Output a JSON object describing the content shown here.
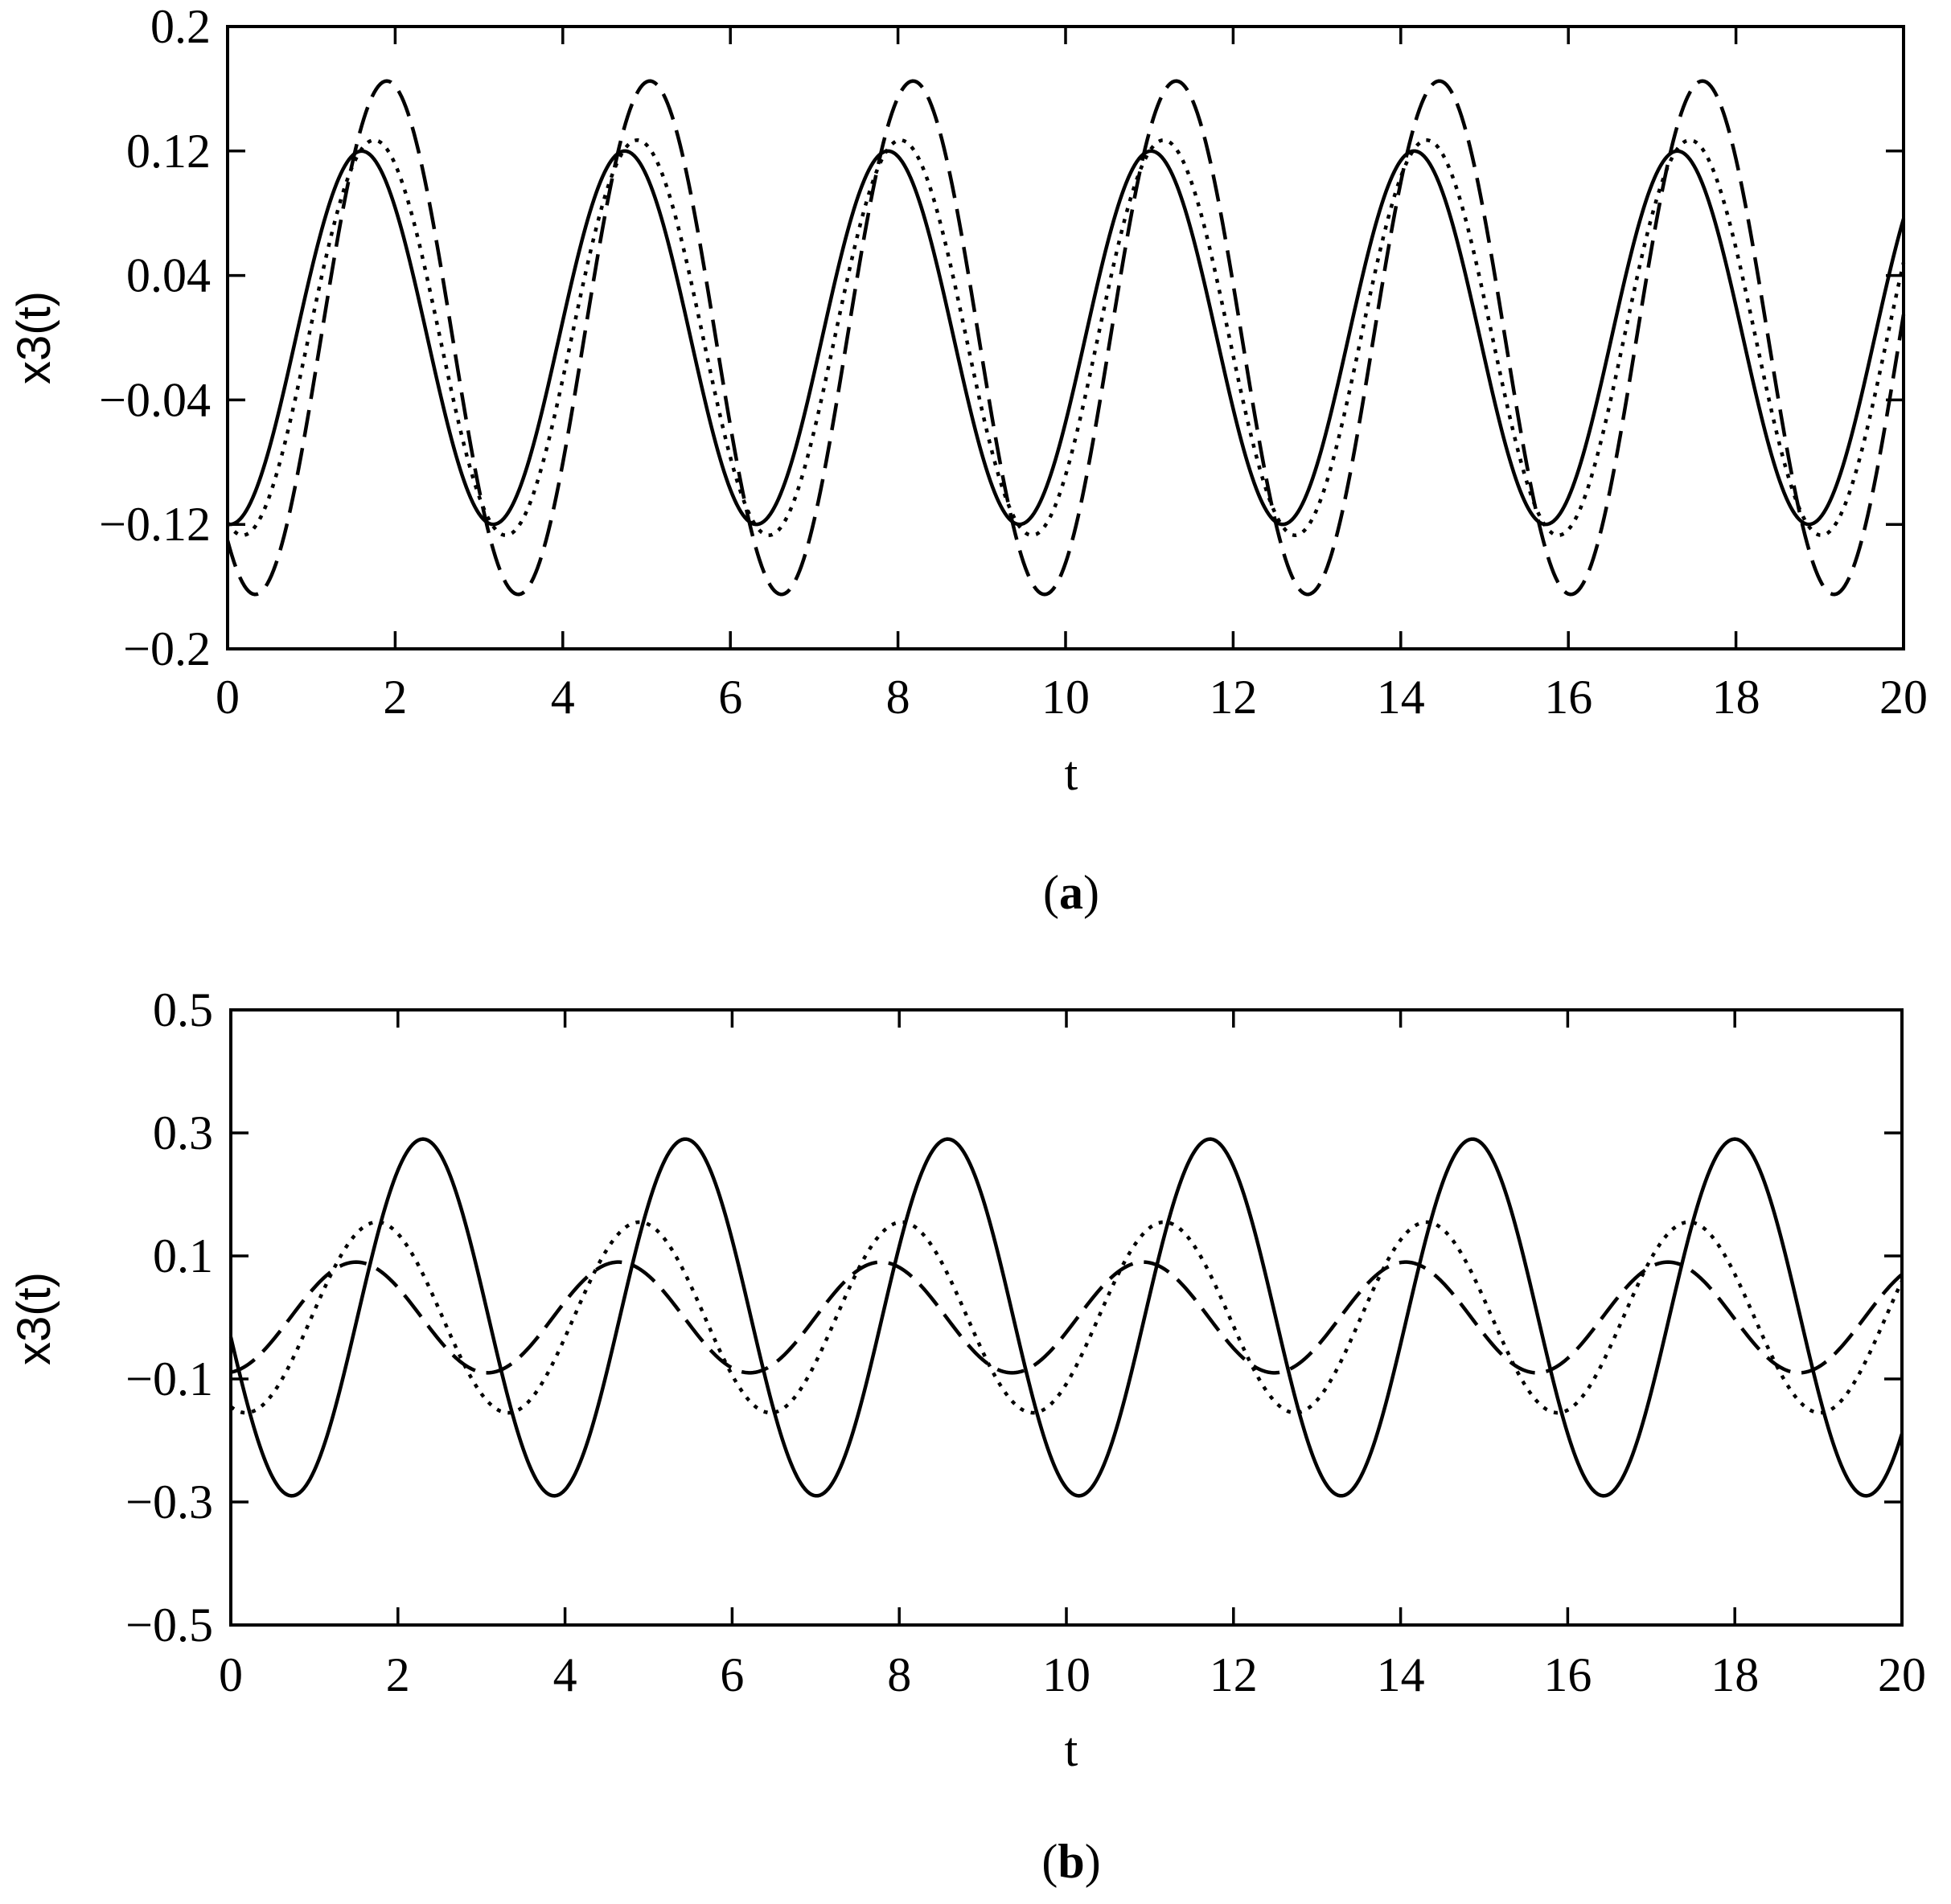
{
  "colors": {
    "line": "#000000",
    "background": "#ffffff"
  },
  "chart_data": [
    {
      "type": "line",
      "panel": "a",
      "panel_label": "a",
      "xlabel": "t",
      "ylabel": "x3(t)",
      "xlim": [
        0,
        20
      ],
      "ylim": [
        -0.2,
        0.2
      ],
      "xticks": [
        0,
        2,
        4,
        6,
        8,
        10,
        12,
        14,
        16,
        18,
        20
      ],
      "yticks": [
        -0.2,
        -0.12,
        -0.04,
        0.04,
        0.12,
        0.2
      ],
      "ytick_labels": [
        "−0.2",
        "−0.12",
        "−0.04",
        "0.04",
        "0.12",
        "0.2"
      ],
      "grid": false,
      "series": [
        {
          "style": "solid",
          "amplitude": 0.12,
          "period": 3.14,
          "phase_t0": 0,
          "first_peak_t": 1.6,
          "first_trough_t": 3.1
        },
        {
          "style": "dotted",
          "amplitude": 0.127,
          "period": 3.14,
          "phase_t0": -0.12,
          "first_peak_t": 1.75,
          "first_trough_t": 3.25
        },
        {
          "style": "dashed",
          "amplitude": 0.165,
          "period": 3.14,
          "phase_t0": -0.165,
          "first_peak_t": 1.9,
          "first_trough_t": 3.45
        }
      ]
    },
    {
      "type": "line",
      "panel": "b",
      "panel_label": "b",
      "xlabel": "t",
      "ylabel": "x3(t)",
      "xlim": [
        0,
        20
      ],
      "ylim": [
        -0.5,
        0.5
      ],
      "xticks": [
        0,
        2,
        4,
        6,
        8,
        10,
        12,
        14,
        16,
        18,
        20
      ],
      "yticks": [
        -0.5,
        -0.3,
        -0.1,
        0.1,
        0.3,
        0.5
      ],
      "ytick_labels": [
        "−0.5",
        "−0.3",
        "−0.1",
        "0.1",
        "0.3",
        "0.5"
      ],
      "grid": false,
      "series": [
        {
          "style": "solid",
          "amplitude": 0.29,
          "period": 3.14,
          "phase_t0": -0.05,
          "first_trough_t": 0.7,
          "first_peak_t": 2.3
        },
        {
          "style": "dotted",
          "amplitude": 0.155,
          "period": 3.14,
          "phase_t0": -0.15,
          "first_peak_t": 1.75,
          "first_trough_t": 3.3
        },
        {
          "style": "dashed",
          "amplitude": 0.09,
          "period": 3.14,
          "phase_t0": -0.1,
          "first_peak_t": 1.5,
          "first_trough_t": 3.1
        }
      ]
    }
  ]
}
